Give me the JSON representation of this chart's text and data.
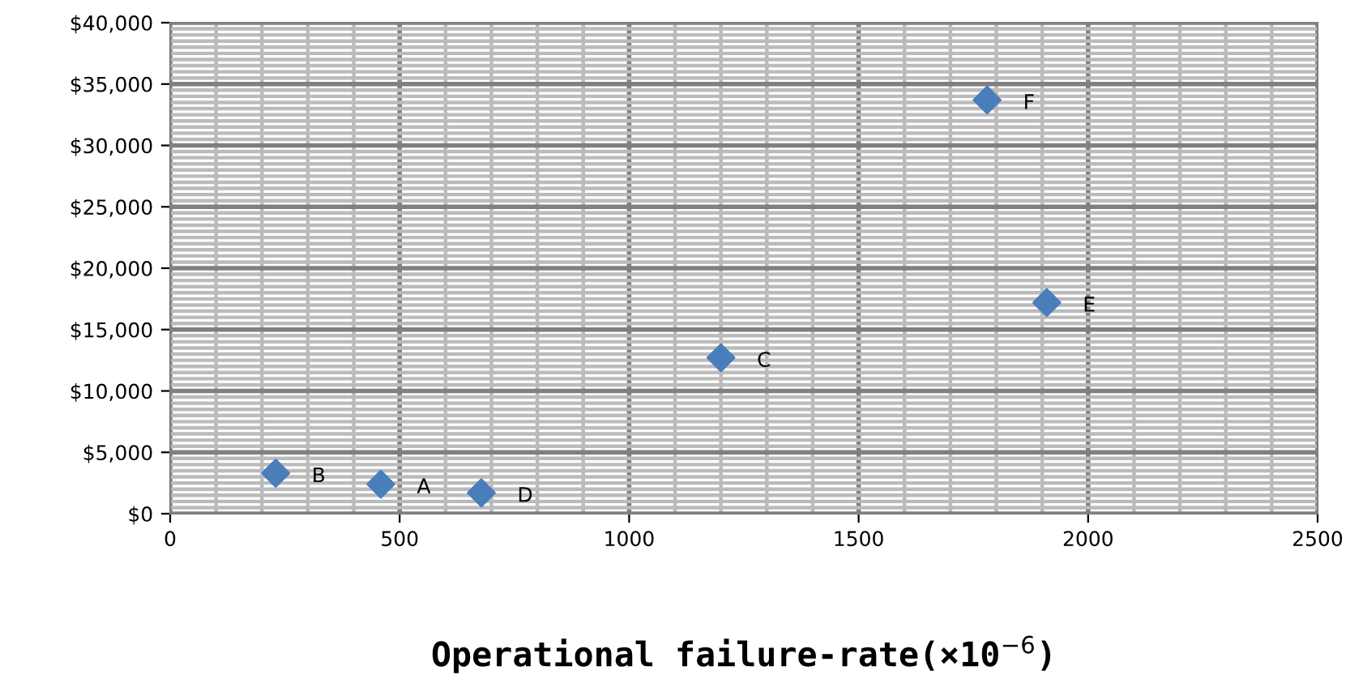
{
  "chart_data": {
    "type": "scatter",
    "xlabel": "Operational failure-rate(×10$^{−6}$)",
    "x": [
      459,
      230,
      1200,
      678,
      1910,
      1780
    ],
    "series": [
      {
        "color": "#4a7ebb",
        "values": [
          2400,
          3300,
          12700,
          1700,
          17200,
          33700
        ]
      }
    ],
    "marker": "diamond",
    "grid": true,
    "xlim": [
      0,
      2500
    ],
    "xticks": [
      0,
      500,
      1000,
      1500,
      2000,
      2500
    ],
    "ylim": [
      0,
      40000
    ],
    "yticks": [
      {
        "value": 0,
        "label": "$0"
      },
      {
        "value": 5000,
        "label": "$5,000"
      },
      {
        "value": 10000,
        "label": "$10,000"
      },
      {
        "value": 15000,
        "label": "$15,000"
      },
      {
        "value": 20000,
        "label": "$20,000"
      },
      {
        "value": 25000,
        "label": "$25,000"
      },
      {
        "value": 30000,
        "label": "$30,000"
      },
      {
        "value": 35000,
        "label": "$35,000"
      },
      {
        "value": 40000,
        "label": "$40,000"
      }
    ],
    "annotations": [
      {
        "text": "A",
        "x": 459,
        "y": 2400
      },
      {
        "text": "B",
        "x": 230,
        "y": 3300
      },
      {
        "text": "C",
        "x": 1200,
        "y": 12700
      },
      {
        "text": "D",
        "x": 678,
        "y": 1700
      },
      {
        "text": "E",
        "x": 1910,
        "y": 17200
      },
      {
        "text": "F",
        "x": 1780,
        "y": 33700
      }
    ]
  }
}
